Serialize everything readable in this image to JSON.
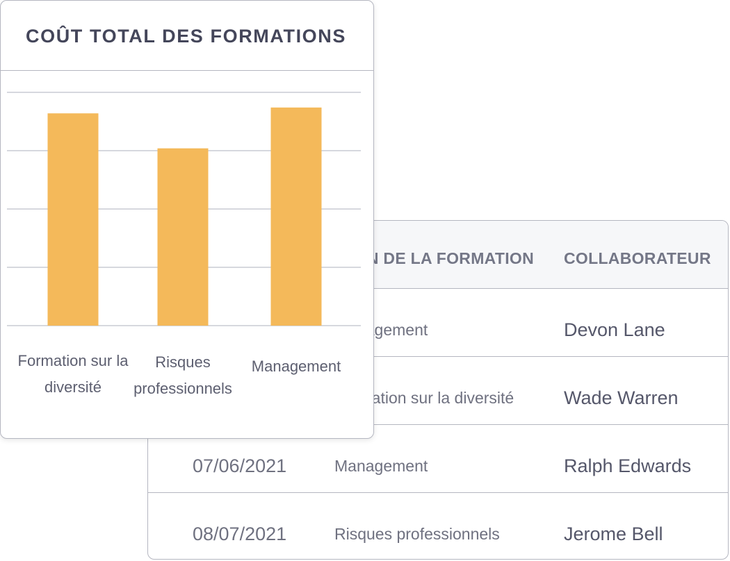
{
  "table": {
    "headers": {
      "formation": "N DE LA FORMATION",
      "collaborateur": "COLLABORATEUR"
    },
    "rows": [
      {
        "date": "",
        "formation": "Management",
        "collaborateur": "Devon Lane"
      },
      {
        "date": "",
        "formation": "Formation sur la diversité",
        "collaborateur": "Wade Warren"
      },
      {
        "date": "07/06/2021",
        "formation": "Management",
        "collaborateur": "Ralph Edwards"
      },
      {
        "date": "08/07/2021",
        "formation": "Risques professionnels",
        "collaborateur": "Jerome Bell"
      }
    ]
  },
  "chart_card": {
    "title": "COÛT TOTAL DES FORMATIONS"
  },
  "chart_data": {
    "type": "bar",
    "title": "COÛT TOTAL DES FORMATIONS",
    "categories": [
      "Formation sur la diversité",
      "Risques professionnels",
      "Management"
    ],
    "values": [
      3.64,
      3.04,
      3.74
    ],
    "ylim": [
      0,
      4
    ],
    "grid": true,
    "color": "#f4b95a"
  }
}
